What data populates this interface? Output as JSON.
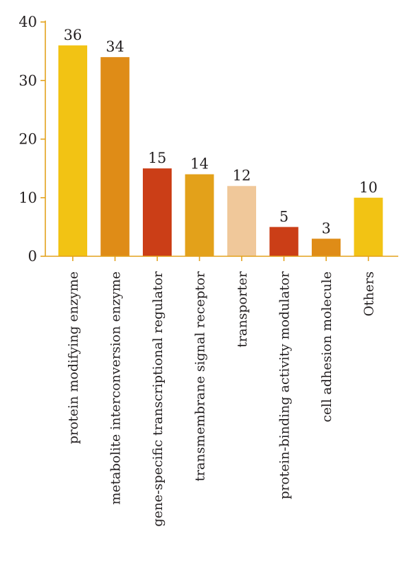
{
  "chart_data": {
    "type": "bar",
    "categories": [
      "protein modifying enzyme",
      "metabolite interconversion enzyme",
      "gene-specific transcriptional regulator",
      "transmembrane signal receptor",
      "transporter",
      "protein-binding activity modulator",
      "cell adhesion molecule",
      "Others"
    ],
    "values": [
      36,
      34,
      15,
      14,
      12,
      5,
      3,
      10
    ],
    "data_labels": [
      "36",
      "34",
      "15",
      "14",
      "12",
      "5",
      "3",
      "10"
    ],
    "bar_colors": [
      "#f2c314",
      "#df8c17",
      "#cb3e17",
      "#e3a11a",
      "#f0c89a",
      "#cb3e17",
      "#df8c17",
      "#f2c314"
    ],
    "axis_color": "#e3a11a",
    "title": "",
    "xlabel": "",
    "ylabel": "",
    "ylim": [
      0,
      40
    ],
    "yticks": [
      0,
      10,
      20,
      30,
      40
    ],
    "ytick_labels": [
      "0",
      "10",
      "20",
      "30",
      "40"
    ],
    "grid": false,
    "legend": "none"
  }
}
